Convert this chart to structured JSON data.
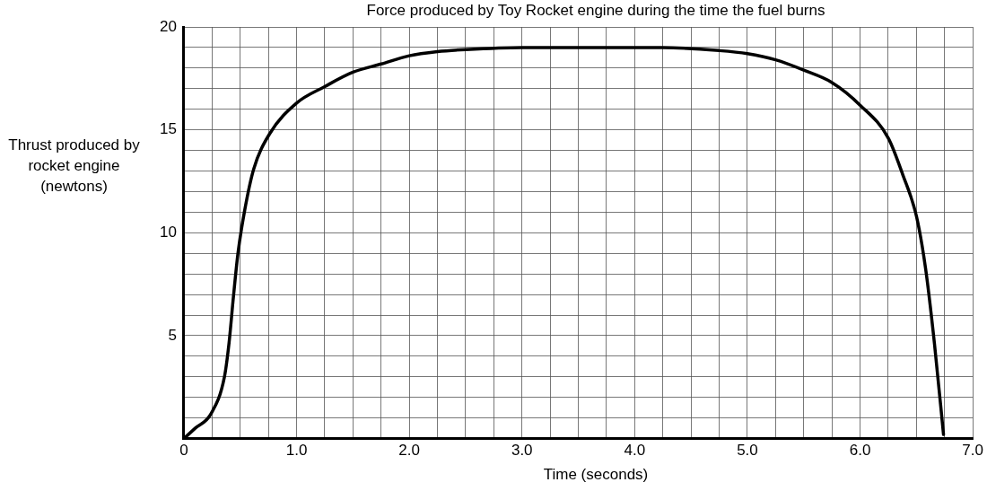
{
  "chart_data": {
    "type": "line",
    "title": "Force produced by Toy Rocket engine during the time the fuel burns",
    "xlabel": "Time (seconds)",
    "ylabel": "Thrust produced by rocket engine (newtons)",
    "x": [
      0,
      0.1,
      0.24,
      0.36,
      0.4,
      0.44,
      0.48,
      0.54,
      0.62,
      0.76,
      1.0,
      1.25,
      1.5,
      1.75,
      2.0,
      2.25,
      2.5,
      3.0,
      3.5,
      4.0,
      4.25,
      4.75,
      5.0,
      5.25,
      5.5,
      5.75,
      6.0,
      6.25,
      6.38,
      6.5,
      6.58,
      6.66,
      6.74
    ],
    "series": [
      {
        "color": "#000000",
        "values": [
          0,
          0.5,
          1.2,
          3.0,
          4.6,
          6.9,
          9.0,
          11.1,
          13.1,
          14.8,
          16.3,
          17.1,
          17.8,
          18.2,
          18.6,
          18.8,
          18.9,
          19.0,
          19.0,
          19.0,
          19.0,
          18.85,
          18.7,
          18.4,
          17.9,
          17.3,
          16.2,
          14.6,
          12.8,
          10.8,
          8.3,
          4.6,
          0.2
        ]
      }
    ],
    "xlim": [
      0,
      7
    ],
    "ylim": [
      0,
      20
    ],
    "xticks": [
      {
        "value": 0,
        "label": "0"
      },
      {
        "value": 0.25,
        "label": null
      },
      {
        "value": 0.5,
        "label": null
      },
      {
        "value": 0.75,
        "label": null
      },
      {
        "value": 1,
        "label": "1.0"
      },
      {
        "value": 1.25,
        "label": null
      },
      {
        "value": 1.5,
        "label": null
      },
      {
        "value": 1.75,
        "label": null
      },
      {
        "value": 2,
        "label": "2.0"
      },
      {
        "value": 2.25,
        "label": null
      },
      {
        "value": 2.5,
        "label": null
      },
      {
        "value": 2.75,
        "label": null
      },
      {
        "value": 3,
        "label": "3.0"
      },
      {
        "value": 3.25,
        "label": null
      },
      {
        "value": 3.5,
        "label": null
      },
      {
        "value": 3.75,
        "label": null
      },
      {
        "value": 4,
        "label": "4.0"
      },
      {
        "value": 4.25,
        "label": null
      },
      {
        "value": 4.5,
        "label": null
      },
      {
        "value": 4.75,
        "label": null
      },
      {
        "value": 5,
        "label": "5.0"
      },
      {
        "value": 5.25,
        "label": null
      },
      {
        "value": 5.5,
        "label": null
      },
      {
        "value": 5.75,
        "label": null
      },
      {
        "value": 6,
        "label": "6.0"
      },
      {
        "value": 6.25,
        "label": null
      },
      {
        "value": 6.5,
        "label": null
      },
      {
        "value": 6.75,
        "label": null
      },
      {
        "value": 7,
        "label": "7.0"
      }
    ],
    "yticks": [
      {
        "value": 0,
        "label": null
      },
      {
        "value": 1,
        "label": null
      },
      {
        "value": 2,
        "label": null
      },
      {
        "value": 3,
        "label": null
      },
      {
        "value": 4,
        "label": null
      },
      5,
      {
        "value": 6,
        "label": null
      },
      {
        "value": 7,
        "label": null
      },
      {
        "value": 8,
        "label": null
      },
      {
        "value": 9,
        "label": null
      },
      10,
      {
        "value": 11,
        "label": null
      },
      {
        "value": 12,
        "label": null
      },
      {
        "value": 13,
        "label": null
      },
      {
        "value": 14,
        "label": null
      },
      15,
      {
        "value": 16,
        "label": null
      },
      {
        "value": 17,
        "label": null
      },
      {
        "value": 18,
        "label": null
      },
      {
        "value": 19,
        "label": null
      },
      20
    ],
    "grid": true,
    "legend": false,
    "marker": "none",
    "line_style": "solid"
  }
}
